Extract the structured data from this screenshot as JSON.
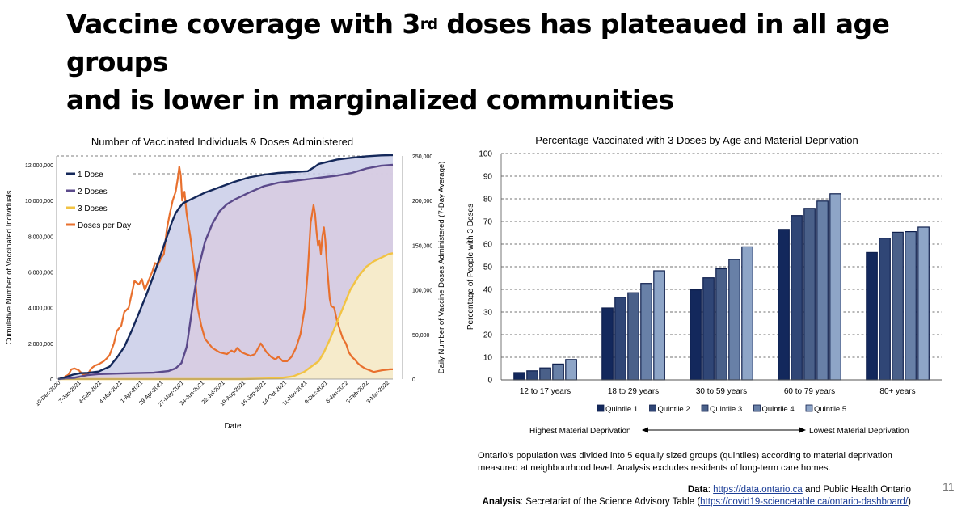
{
  "slide": {
    "title_part1": "Vaccine coverage with 3",
    "title_sup": "rd",
    "title_part2": " doses has plateaued in all age groups",
    "title_line2": "and is lower in marginalized communities",
    "page_number": "11"
  },
  "chart_data": [
    {
      "type": "area",
      "title": "Number of Vaccinated Individuals & Doses Administered",
      "xlabel": "Date",
      "ylabel_left": "Cumulative Number of Vaccinated Individuals",
      "ylabel_right": "Daily Number of Vaccine Doses Administered (7-Day Average)",
      "ylim_left": [
        0,
        12500000
      ],
      "ylim_right": [
        0,
        250000
      ],
      "x_range_days": [
        0,
        456
      ],
      "left_ticks": [
        0,
        2000000,
        4000000,
        6000000,
        8000000,
        10000000,
        12000000
      ],
      "left_tick_labels": [
        "0",
        "2,000,000",
        "4,000,000",
        "6,000,000",
        "8,000,000",
        "10,000,000",
        "12,000,000"
      ],
      "right_ticks": [
        0,
        50000,
        100000,
        150000,
        200000,
        250000
      ],
      "right_tick_labels": [
        "0",
        "50,000",
        "100,000",
        "150,000",
        "200,000",
        "250,000"
      ],
      "x_tick_days": [
        0,
        28,
        56,
        84,
        112,
        140,
        168,
        196,
        224,
        252,
        280,
        308,
        336,
        364,
        392,
        420,
        448
      ],
      "x_tick_labels": [
        "10-Dec-2020",
        "7-Jan-2021",
        "4-Feb-2021",
        "4-Mar-2021",
        "1-Apr-2021",
        "29-Apr-2021",
        "27-May-2021",
        "24-Jun-2021",
        "22-Jul-2021",
        "19-Aug-2021",
        "16-Sep-2021",
        "14-Oct-2021",
        "11-Nov-2021",
        "9-Dec-2021",
        "6-Jan-2022",
        "3-Feb-2022",
        "3-Mar-2022"
      ],
      "gridlines": "dashed at 12,000,000 and 250,000",
      "legend": "top-left",
      "series": [
        {
          "name": "1 Dose",
          "color": "#14285a",
          "fill": "#c9cde7",
          "axis": "left",
          "x": [
            0,
            10,
            20,
            30,
            40,
            55,
            70,
            80,
            90,
            100,
            110,
            120,
            130,
            140,
            150,
            155,
            160,
            165,
            170,
            180,
            190,
            200,
            210,
            220,
            240,
            260,
            280,
            300,
            320,
            340,
            350,
            355,
            365,
            380,
            400,
            420,
            440,
            456
          ],
          "values": [
            0,
            100000,
            250000,
            330000,
            350000,
            420000,
            700000,
            1200000,
            1800000,
            2700000,
            3700000,
            4700000,
            5800000,
            7000000,
            8200000,
            8800000,
            9300000,
            9600000,
            9850000,
            10050000,
            10250000,
            10450000,
            10600000,
            10750000,
            11050000,
            11300000,
            11450000,
            11550000,
            11600000,
            11650000,
            11900000,
            12050000,
            12150000,
            12300000,
            12400000,
            12480000,
            12530000,
            12550000
          ]
        },
        {
          "name": "2 Doses",
          "color": "#5b4a8b",
          "fill": "#d8cbe2",
          "axis": "left",
          "x": [
            0,
            20,
            40,
            55,
            70,
            100,
            130,
            150,
            160,
            168,
            175,
            180,
            185,
            190,
            200,
            210,
            220,
            230,
            240,
            260,
            280,
            300,
            320,
            340,
            360,
            380,
            400,
            420,
            440,
            456
          ],
          "values": [
            0,
            60000,
            220000,
            280000,
            300000,
            330000,
            360000,
            450000,
            600000,
            900000,
            1800000,
            3200000,
            4700000,
            6000000,
            7700000,
            8700000,
            9400000,
            9800000,
            10050000,
            10450000,
            10800000,
            11000000,
            11100000,
            11200000,
            11300000,
            11400000,
            11550000,
            11800000,
            11950000,
            12000000
          ]
        },
        {
          "name": "3 Doses",
          "color": "#f2c343",
          "fill": "#fbf0c7",
          "axis": "left",
          "x": [
            0,
            250,
            300,
            320,
            335,
            345,
            355,
            362,
            370,
            378,
            388,
            398,
            410,
            420,
            430,
            440,
            450,
            456
          ],
          "values": [
            0,
            0,
            50000,
            150000,
            400000,
            700000,
            1000000,
            1500000,
            2200000,
            3000000,
            4000000,
            5000000,
            5800000,
            6300000,
            6600000,
            6800000,
            7000000,
            7050000
          ]
        },
        {
          "name": "Doses per Day",
          "color": "#e8702e",
          "axis": "right",
          "x": [
            0,
            8,
            14,
            18,
            22,
            28,
            34,
            40,
            45,
            50,
            56,
            62,
            66,
            70,
            76,
            80,
            86,
            90,
            96,
            100,
            104,
            110,
            114,
            118,
            122,
            128,
            132,
            136,
            140,
            144,
            148,
            152,
            156,
            160,
            163,
            165,
            167,
            169,
            172,
            175,
            180,
            186,
            190,
            195,
            200,
            205,
            210,
            220,
            230,
            236,
            240,
            244,
            250,
            256,
            262,
            268,
            276,
            284,
            290,
            296,
            300,
            306,
            312,
            318,
            324,
            330,
            336,
            340,
            344,
            348,
            350,
            352,
            354,
            356,
            358,
            360,
            362,
            364,
            366,
            368,
            370,
            372,
            376,
            380,
            384,
            388,
            392,
            396,
            400,
            404,
            408,
            412,
            418,
            424,
            430,
            436,
            442,
            448,
            452,
            456
          ],
          "values": [
            0,
            2000,
            5000,
            11000,
            12000,
            10000,
            5000,
            5000,
            12000,
            15000,
            17000,
            20000,
            23000,
            27000,
            40000,
            54000,
            60000,
            75000,
            80000,
            95000,
            110000,
            106000,
            112000,
            100000,
            108000,
            120000,
            130000,
            128000,
            135000,
            140000,
            168000,
            185000,
            200000,
            210000,
            225000,
            238000,
            228000,
            200000,
            210000,
            185000,
            160000,
            120000,
            80000,
            60000,
            45000,
            40000,
            35000,
            30000,
            28000,
            32000,
            30000,
            35000,
            30000,
            28000,
            26000,
            28000,
            40000,
            30000,
            25000,
            22000,
            25000,
            20000,
            20000,
            25000,
            35000,
            50000,
            80000,
            120000,
            175000,
            195000,
            185000,
            165000,
            150000,
            155000,
            140000,
            160000,
            170000,
            155000,
            130000,
            110000,
            90000,
            82000,
            80000,
            65000,
            55000,
            45000,
            40000,
            30000,
            25000,
            22000,
            18000,
            15000,
            12000,
            10000,
            8000,
            9000,
            10000,
            10500,
            11000,
            11000
          ]
        }
      ]
    },
    {
      "type": "bar",
      "title": "Percentage Vaccinated with 3 Doses by Age and Material Deprivation",
      "xlabel": "",
      "ylabel": "Percentage of People with 3 Doses",
      "ylim": [
        0,
        100
      ],
      "y_ticks": [
        0,
        10,
        20,
        30,
        40,
        50,
        60,
        70,
        80,
        90,
        100
      ],
      "grid": "dashed horizontal",
      "legend": "bottom",
      "categories": [
        "12 to 17 years",
        "18 to 29 years",
        "30 to 59 years",
        "60 to 79 years",
        "80+ years"
      ],
      "series": [
        {
          "name": "Quintile 1",
          "color": "#13285c",
          "values": [
            3.2,
            31.8,
            39.8,
            66.5,
            56.3
          ]
        },
        {
          "name": "Quintile 2",
          "color": "#304676",
          "values": [
            4.0,
            36.5,
            45.1,
            72.6,
            62.6
          ]
        },
        {
          "name": "Quintile 3",
          "color": "#4a6089",
          "values": [
            5.3,
            38.5,
            49.1,
            75.8,
            65.2
          ]
        },
        {
          "name": "Quintile 4",
          "color": "#6880a7",
          "values": [
            7.0,
            42.6,
            53.2,
            79.0,
            65.5
          ]
        },
        {
          "name": "Quintile 5",
          "color": "#8ea5c7",
          "values": [
            9.0,
            48.2,
            58.8,
            82.2,
            67.5
          ]
        }
      ],
      "annotation_left": "Highest Material Deprivation",
      "annotation_right": "Lowest Material Deprivation"
    }
  ],
  "note": "Ontario’s population was divided into 5 equally sized groups (quintiles) according to material deprivation measured at neighbourhood level. Analysis excludes residents of long-term care homes.",
  "source": {
    "data_label": "Data",
    "data_link": "https://data.ontario.ca",
    "data_rest": " and Public Health Ontario",
    "analysis_label": "Analysis",
    "analysis_text": ": Secretariat of the Science Advisory Table (",
    "analysis_link": "https://covid19-sciencetable.ca/ontario-dashboard/",
    "analysis_end": ")"
  }
}
